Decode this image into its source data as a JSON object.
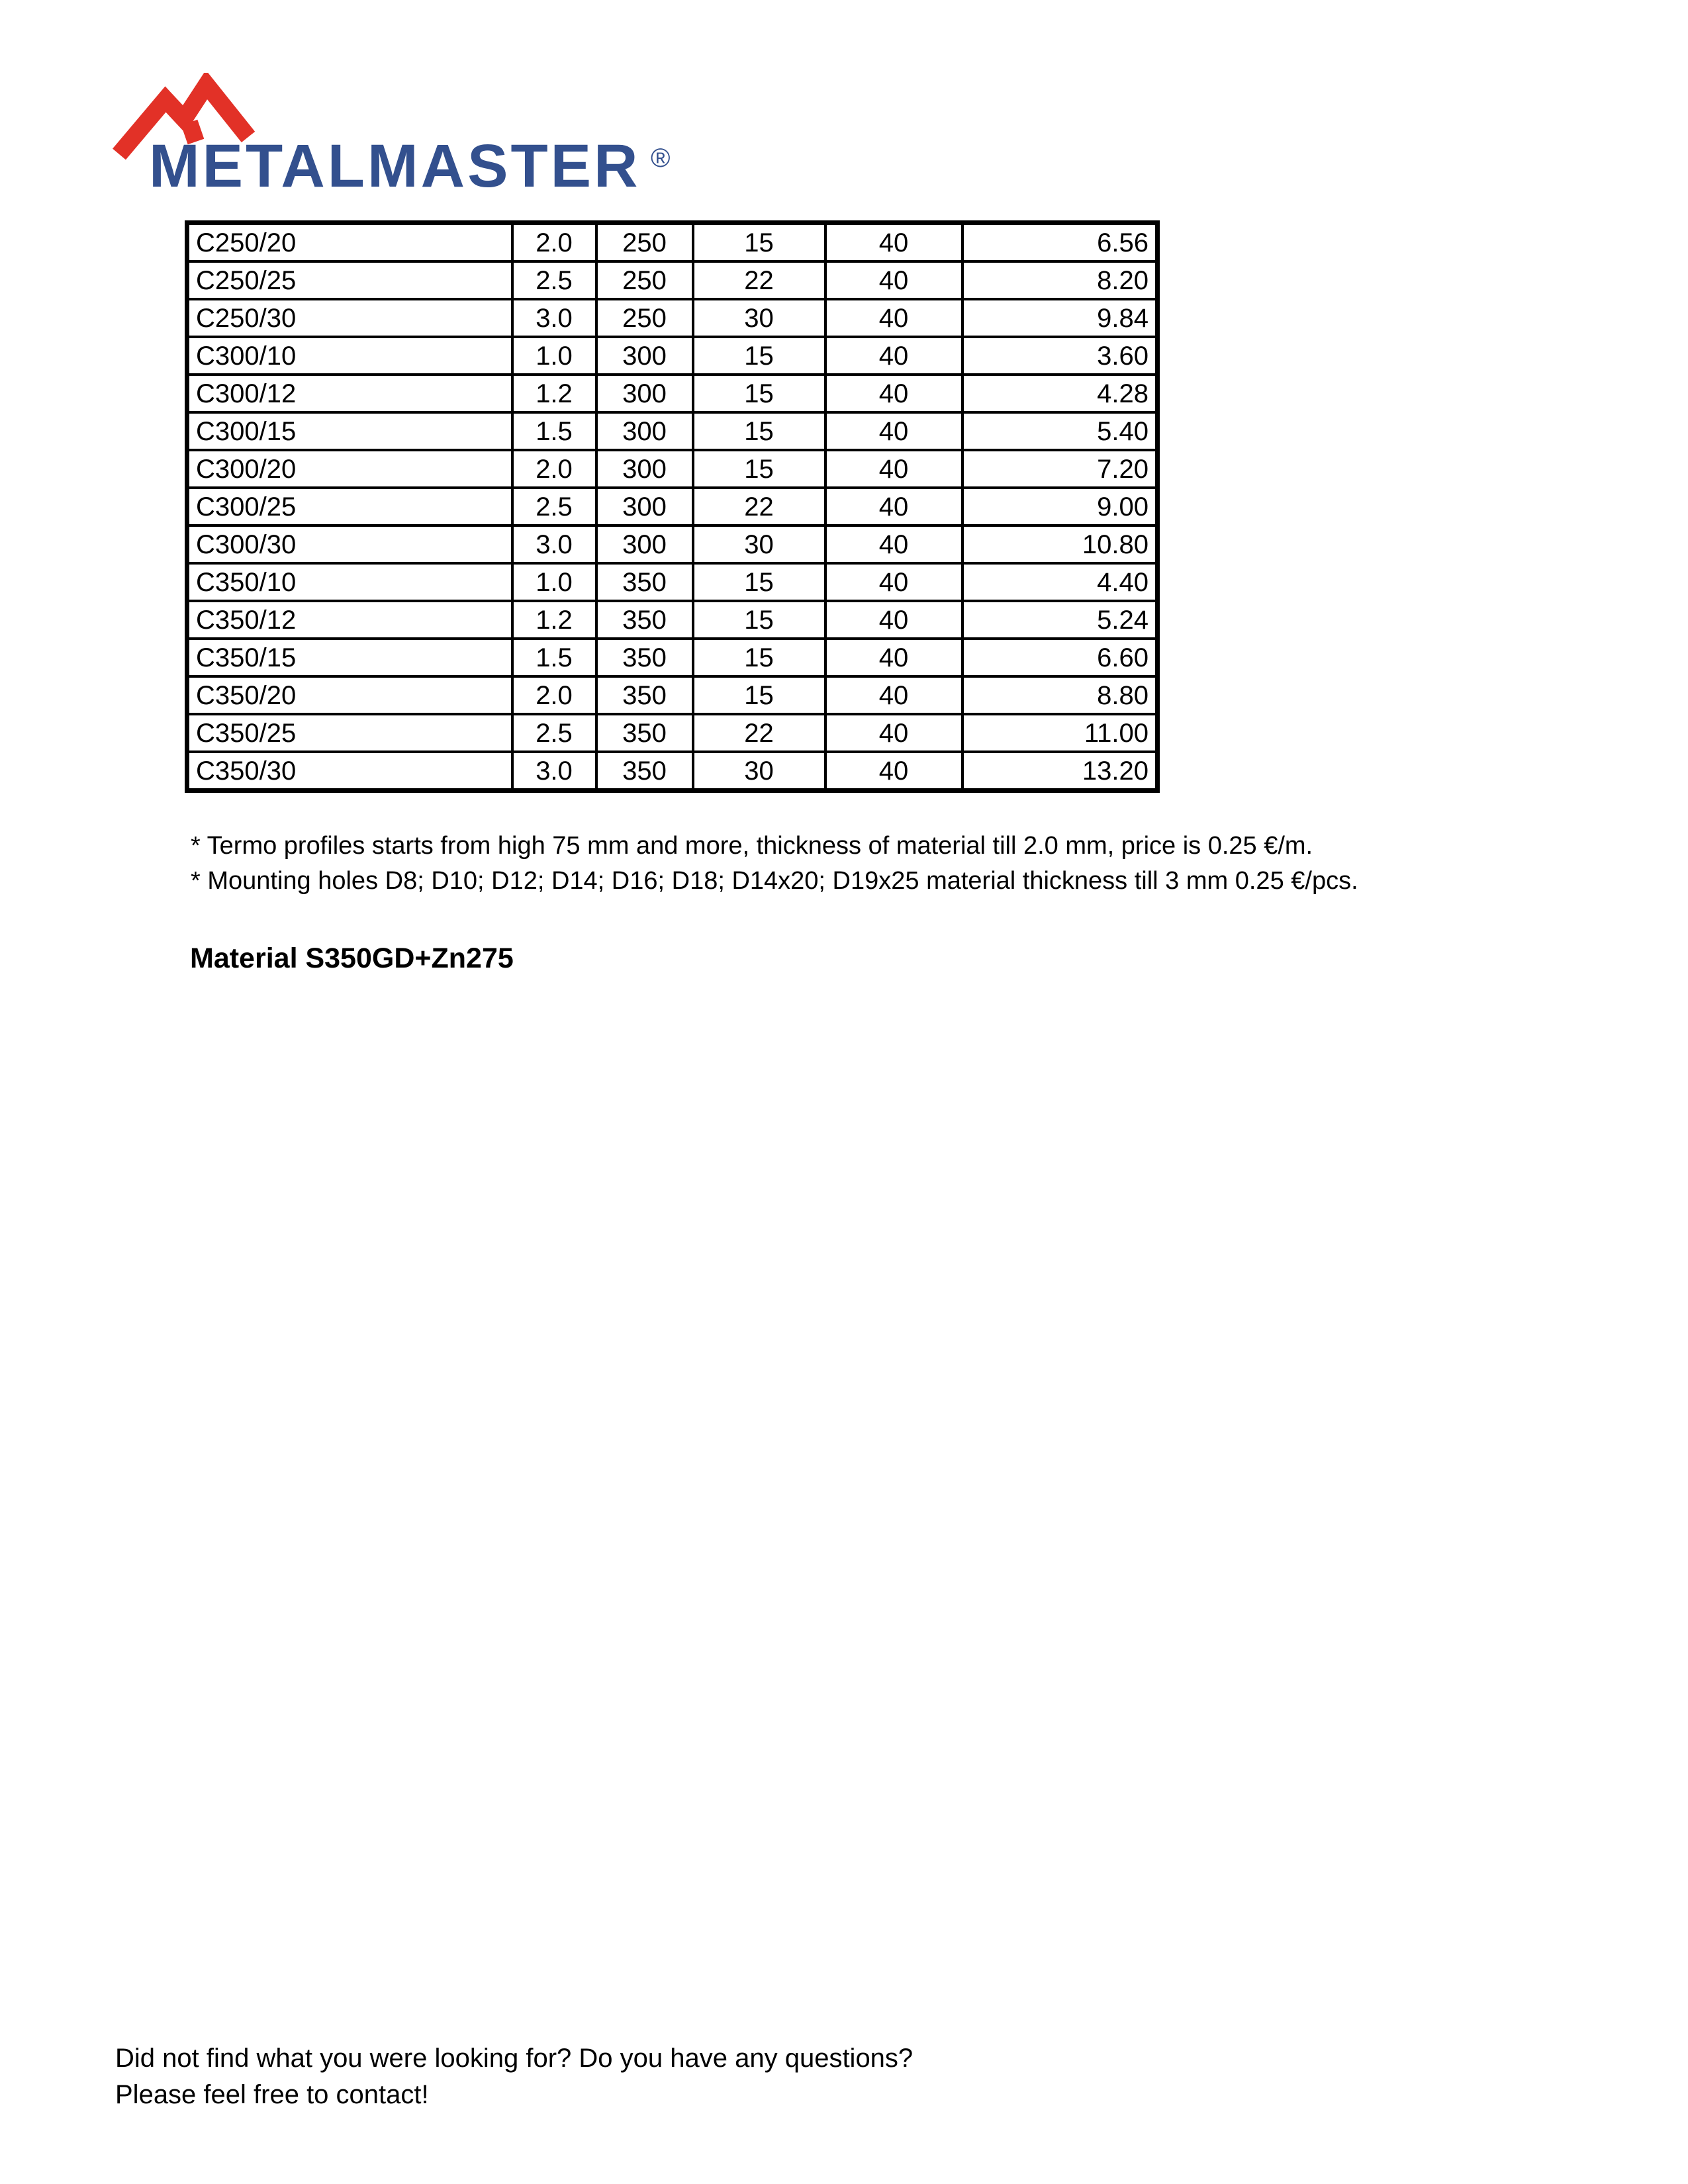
{
  "logo": {
    "brand": "METALMASTER",
    "registered_mark": "®",
    "red": "#e23127",
    "blue": "#33508e"
  },
  "table": {
    "rows": [
      [
        "C250/20",
        "2.0",
        "250",
        "15",
        "40",
        "6.56"
      ],
      [
        "C250/25",
        "2.5",
        "250",
        "22",
        "40",
        "8.20"
      ],
      [
        "C250/30",
        "3.0",
        "250",
        "30",
        "40",
        "9.84"
      ],
      [
        "C300/10",
        "1.0",
        "300",
        "15",
        "40",
        "3.60"
      ],
      [
        "C300/12",
        "1.2",
        "300",
        "15",
        "40",
        "4.28"
      ],
      [
        "C300/15",
        "1.5",
        "300",
        "15",
        "40",
        "5.40"
      ],
      [
        "C300/20",
        "2.0",
        "300",
        "15",
        "40",
        "7.20"
      ],
      [
        "C300/25",
        "2.5",
        "300",
        "22",
        "40",
        "9.00"
      ],
      [
        "C300/30",
        "3.0",
        "300",
        "30",
        "40",
        "10.80"
      ],
      [
        "C350/10",
        "1.0",
        "350",
        "15",
        "40",
        "4.40"
      ],
      [
        "C350/12",
        "1.2",
        "350",
        "15",
        "40",
        "5.24"
      ],
      [
        "C350/15",
        "1.5",
        "350",
        "15",
        "40",
        "6.60"
      ],
      [
        "C350/20",
        "2.0",
        "350",
        "15",
        "40",
        "8.80"
      ],
      [
        "C350/25",
        "2.5",
        "350",
        "22",
        "40",
        "11.00"
      ],
      [
        "C350/30",
        "3.0",
        "350",
        "30",
        "40",
        "13.20"
      ]
    ]
  },
  "notes": {
    "line1": "* Termo profiles starts from high 75 mm and more, thickness of material till 2.0 mm, price is 0.25 €/m.",
    "line2": "* Mounting holes D8; D10; D12; D14; D16; D18; D14x20; D19x25 material thickness till 3 mm 0.25 €/pcs."
  },
  "material_note": "Material S350GD+Zn275",
  "footer": {
    "line1": "Did not find what you were looking for? Do you have any questions?",
    "line2": "Please feel free to contact!"
  }
}
